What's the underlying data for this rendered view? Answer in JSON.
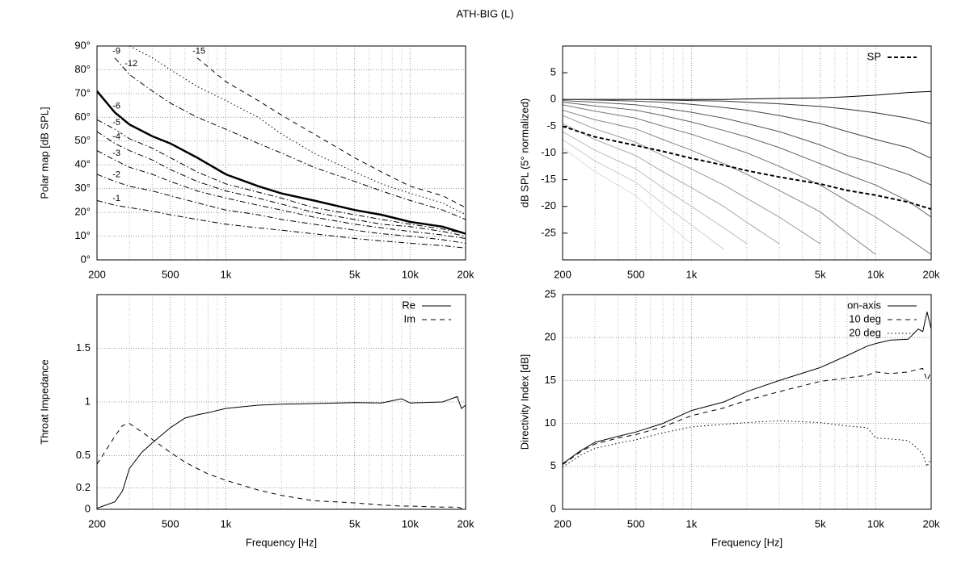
{
  "title": "ATH-BIG (L)",
  "chart_data": [
    {
      "type": "line",
      "xscale": "log",
      "ylabel": "Polar map [dB SPL]",
      "grid": "both",
      "xlim": [
        200,
        20000
      ],
      "xticks": [
        200,
        500,
        {
          "value": 1000,
          "label": "1k"
        },
        {
          "value": 5000,
          "label": "5k"
        },
        {
          "value": 10000,
          "label": "10k"
        },
        {
          "value": 20000,
          "label": "20k"
        }
      ],
      "xgrid_minor": [
        300,
        400,
        600,
        700,
        800,
        900,
        2000,
        3000,
        4000,
        6000,
        7000,
        8000,
        9000
      ],
      "ylim": [
        0,
        90
      ],
      "yticks": [
        {
          "value": 0,
          "label": "0°"
        },
        {
          "value": 10,
          "label": "10°"
        },
        {
          "value": 20,
          "label": "20°"
        },
        {
          "value": 30,
          "label": "30°"
        },
        {
          "value": 40,
          "label": "40°"
        },
        {
          "value": 50,
          "label": "50°"
        },
        {
          "value": 60,
          "label": "60°"
        },
        {
          "value": 70,
          "label": "70°"
        },
        {
          "value": 80,
          "label": "80°"
        },
        {
          "value": 90,
          "label": "90°"
        }
      ],
      "x": [
        200,
        250,
        300,
        400,
        500,
        700,
        1000,
        1500,
        2000,
        3000,
        5000,
        7000,
        10000,
        15000,
        20000
      ],
      "series": [
        {
          "name": "-1",
          "color": "#000000",
          "style": "dashdot",
          "values": [
            25,
            23,
            22,
            20.5,
            19,
            17,
            15,
            13.5,
            12.5,
            11,
            9,
            8,
            7,
            6,
            5
          ]
        },
        {
          "name": "-2",
          "color": "#000000",
          "style": "dashdot",
          "values": [
            36,
            33,
            31,
            29,
            27,
            24,
            21,
            19,
            17,
            15,
            12.5,
            11,
            10,
            8.5,
            7
          ]
        },
        {
          "name": "-3",
          "color": "#000000",
          "style": "dashdot",
          "values": [
            46,
            42,
            39,
            36,
            33,
            29,
            26,
            23,
            21,
            18,
            15,
            13.5,
            12,
            10.5,
            9
          ]
        },
        {
          "name": "-4",
          "color": "#000000",
          "style": "dashdot",
          "values": [
            54,
            49,
            46,
            42,
            38,
            33,
            29,
            26,
            23.5,
            20,
            17,
            15,
            14,
            12,
            10
          ]
        },
        {
          "name": "-5",
          "color": "#000000",
          "style": "dashdot",
          "values": [
            59,
            55,
            51,
            47,
            43,
            37,
            32,
            28.5,
            26,
            22,
            19,
            17,
            15,
            13,
            11
          ]
        },
        {
          "name": "-6",
          "color": "#000000",
          "style": "thick",
          "values": [
            71,
            62,
            57,
            52,
            49,
            43,
            36,
            31,
            28,
            25,
            21,
            19,
            16,
            14,
            11
          ]
        },
        {
          "name": "-9",
          "color": "#000000",
          "style": "dashdot",
          "values": [
            null,
            85,
            78,
            71,
            66,
            60,
            55,
            49,
            45,
            39,
            33,
            29,
            25,
            21,
            17
          ]
        },
        {
          "name": "-12",
          "color": "#000000",
          "style": "dotted",
          "values": [
            null,
            null,
            90,
            85,
            80,
            73,
            67,
            60,
            53,
            45,
            37,
            32,
            28,
            24,
            19
          ]
        },
        {
          "name": "-15",
          "color": "#000000",
          "style": "dashed",
          "values": [
            null,
            null,
            null,
            null,
            null,
            85,
            75,
            67,
            61,
            53,
            43,
            37,
            31,
            27,
            22
          ]
        }
      ]
    },
    {
      "type": "line",
      "xscale": "log",
      "ylabel": "dB SPL (5° normalized)",
      "grid": "x",
      "legend": "top-right",
      "xlim": [
        200,
        20000
      ],
      "xticks": [
        200,
        500,
        {
          "value": 1000,
          "label": "1k"
        },
        {
          "value": 5000,
          "label": "5k"
        },
        {
          "value": 10000,
          "label": "10k"
        },
        {
          "value": 20000,
          "label": "20k"
        }
      ],
      "xgrid_minor": [
        300,
        400,
        600,
        700,
        800,
        900,
        2000,
        3000,
        4000,
        6000,
        7000,
        8000,
        9000
      ],
      "ylim": [
        -30,
        10
      ],
      "yticks": [
        -25,
        -20,
        -15,
        -10,
        -5,
        0,
        5
      ],
      "x": [
        200,
        300,
        500,
        700,
        1000,
        1500,
        2000,
        3000,
        5000,
        7000,
        10000,
        15000,
        20000
      ],
      "curves": [
        {
          "color": "#000000",
          "values": [
            0,
            0,
            0,
            0,
            0,
            0,
            0.1,
            0.2,
            0.3,
            0.5,
            0.8,
            1.3,
            1.5
          ]
        },
        {
          "color": "#333333",
          "values": [
            0,
            0,
            0,
            -0.1,
            -0.2,
            -0.3,
            -0.5,
            -0.8,
            -1.3,
            -1.8,
            -2.5,
            -3.5,
            -4.5
          ]
        },
        {
          "color": "#444444",
          "values": [
            0,
            -0.1,
            -0.3,
            -0.5,
            -0.9,
            -1.5,
            -2,
            -3,
            -4.5,
            -6,
            -7.5,
            -9,
            -11
          ]
        },
        {
          "color": "#555555",
          "values": [
            -0.2,
            -0.5,
            -1,
            -1.6,
            -2.4,
            -3.5,
            -4.5,
            -6,
            -8.5,
            -10.5,
            -12,
            -14,
            -16
          ]
        },
        {
          "color": "#666666",
          "values": [
            -0.5,
            -1.2,
            -2,
            -3,
            -4.2,
            -5.8,
            -7,
            -9,
            -12,
            -14,
            -16,
            -19,
            -22
          ]
        },
        {
          "color": "#777777",
          "values": [
            -1,
            -2.2,
            -3.5,
            -5,
            -6.5,
            -8.5,
            -10,
            -12.5,
            -16,
            -19,
            -22,
            -26,
            -29
          ]
        },
        {
          "color": "#888888",
          "values": [
            -2,
            -3.8,
            -5.5,
            -7.5,
            -9.5,
            -12,
            -14,
            -17,
            -21,
            -25,
            -29,
            null,
            null
          ]
        },
        {
          "color": "#999999",
          "values": [
            -3,
            -5.5,
            -8,
            -10.5,
            -13,
            -16,
            -18.5,
            -22,
            -27,
            null,
            null,
            null,
            null
          ]
        },
        {
          "color": "#aaaaaa",
          "values": [
            -4.5,
            -7.5,
            -10.5,
            -13.5,
            -16.5,
            -20,
            -23,
            -27,
            null,
            null,
            null,
            null,
            null
          ]
        },
        {
          "color": "#bbbbbb",
          "values": [
            -6,
            -9.5,
            -13,
            -16.5,
            -20,
            -24,
            -27,
            null,
            null,
            null,
            null,
            null,
            null
          ]
        },
        {
          "color": "#cccccc",
          "values": [
            -7.5,
            -11.5,
            -15.5,
            -19.5,
            -23.5,
            -28,
            null,
            null,
            null,
            null,
            null,
            null,
            null
          ]
        },
        {
          "color": "#dddddd",
          "values": [
            -9,
            -13.5,
            -18,
            -22.5,
            -27,
            null,
            null,
            null,
            null,
            null,
            null,
            null,
            null
          ]
        }
      ],
      "series": [
        {
          "name": "SP",
          "color": "#000000",
          "style": "boldDashed",
          "values": [
            -5,
            -7,
            -8.6,
            -9.7,
            -11,
            -12.3,
            -13.3,
            -14.5,
            -15.8,
            -17,
            -17.9,
            -19.2,
            -20.5
          ]
        }
      ]
    },
    {
      "type": "line",
      "xscale": "log",
      "xlabel": "Frequency [Hz]",
      "ylabel": "Throat Impedance",
      "grid": "both",
      "legend": "top-right",
      "xlim": [
        200,
        20000
      ],
      "xticks": [
        200,
        500,
        {
          "value": 1000,
          "label": "1k"
        },
        {
          "value": 5000,
          "label": "5k"
        },
        {
          "value": 10000,
          "label": "10k"
        },
        {
          "value": 20000,
          "label": "20k"
        }
      ],
      "xgrid_minor": [
        300,
        400,
        600,
        700,
        800,
        900,
        2000,
        3000,
        4000,
        6000,
        7000,
        8000,
        9000
      ],
      "ylim": [
        0,
        2
      ],
      "yticks": [
        0,
        0.2,
        0.5,
        1,
        1.5
      ],
      "x": [
        200,
        250,
        275,
        300,
        350,
        400,
        500,
        600,
        700,
        800,
        1000,
        1500,
        2000,
        3000,
        5000,
        7000,
        9000,
        10000,
        15000,
        18000,
        19000,
        20000
      ],
      "series": [
        {
          "name": "Re",
          "color": "#000000",
          "style": "solid",
          "values": [
            0.01,
            0.07,
            0.17,
            0.38,
            0.53,
            0.62,
            0.76,
            0.85,
            0.88,
            0.9,
            0.94,
            0.97,
            0.98,
            0.985,
            0.995,
            0.99,
            1.03,
            0.99,
            1.0,
            1.05,
            0.94,
            0.97
          ]
        },
        {
          "name": "Im",
          "color": "#000000",
          "style": "dashed",
          "values": [
            0.42,
            0.68,
            0.78,
            0.8,
            0.72,
            0.65,
            0.53,
            0.44,
            0.38,
            0.33,
            0.27,
            0.18,
            0.13,
            0.08,
            0.06,
            0.04,
            0.03,
            0.03,
            0.02,
            0.02,
            0.01,
            0.01
          ]
        }
      ]
    },
    {
      "type": "line",
      "xscale": "log",
      "xlabel": "Frequency [Hz]",
      "ylabel": "Directivity Index [dB]",
      "grid": "both",
      "legend": "top-right",
      "xlim": [
        200,
        20000
      ],
      "xticks": [
        200,
        500,
        {
          "value": 1000,
          "label": "1k"
        },
        {
          "value": 5000,
          "label": "5k"
        },
        {
          "value": 10000,
          "label": "10k"
        },
        {
          "value": 20000,
          "label": "20k"
        }
      ],
      "xgrid_minor": [
        300,
        400,
        600,
        700,
        800,
        900,
        2000,
        3000,
        4000,
        6000,
        7000,
        8000,
        9000
      ],
      "ylim": [
        0,
        25
      ],
      "yticks": [
        0,
        5,
        10,
        15,
        20,
        25
      ],
      "x": [
        200,
        250,
        300,
        400,
        500,
        700,
        1000,
        1500,
        2000,
        3000,
        5000,
        7000,
        9000,
        10000,
        12000,
        15000,
        17000,
        18000,
        19000,
        20000
      ],
      "series": [
        {
          "name": "on-axis",
          "color": "#000000",
          "style": "solid",
          "values": [
            5.3,
            6.8,
            7.8,
            8.5,
            9,
            10,
            11.5,
            12.5,
            13.7,
            15,
            16.5,
            17.9,
            19,
            19.3,
            19.7,
            19.8,
            21,
            20.7,
            23,
            21
          ]
        },
        {
          "name": "10 deg",
          "color": "#000000",
          "style": "dashed",
          "values": [
            5.2,
            6.7,
            7.6,
            8.3,
            8.7,
            9.6,
            10.9,
            11.8,
            12.7,
            13.7,
            14.9,
            15.3,
            15.6,
            16,
            15.8,
            16,
            16.3,
            16.4,
            15,
            16
          ]
        },
        {
          "name": "20 deg",
          "color": "#000000",
          "style": "dotted",
          "values": [
            4.9,
            6.3,
            7.1,
            7.7,
            8.1,
            8.9,
            9.6,
            9.9,
            10.1,
            10.3,
            10.1,
            9.7,
            9.5,
            8.3,
            8.2,
            8,
            7,
            6.4,
            5,
            6
          ]
        }
      ]
    }
  ]
}
